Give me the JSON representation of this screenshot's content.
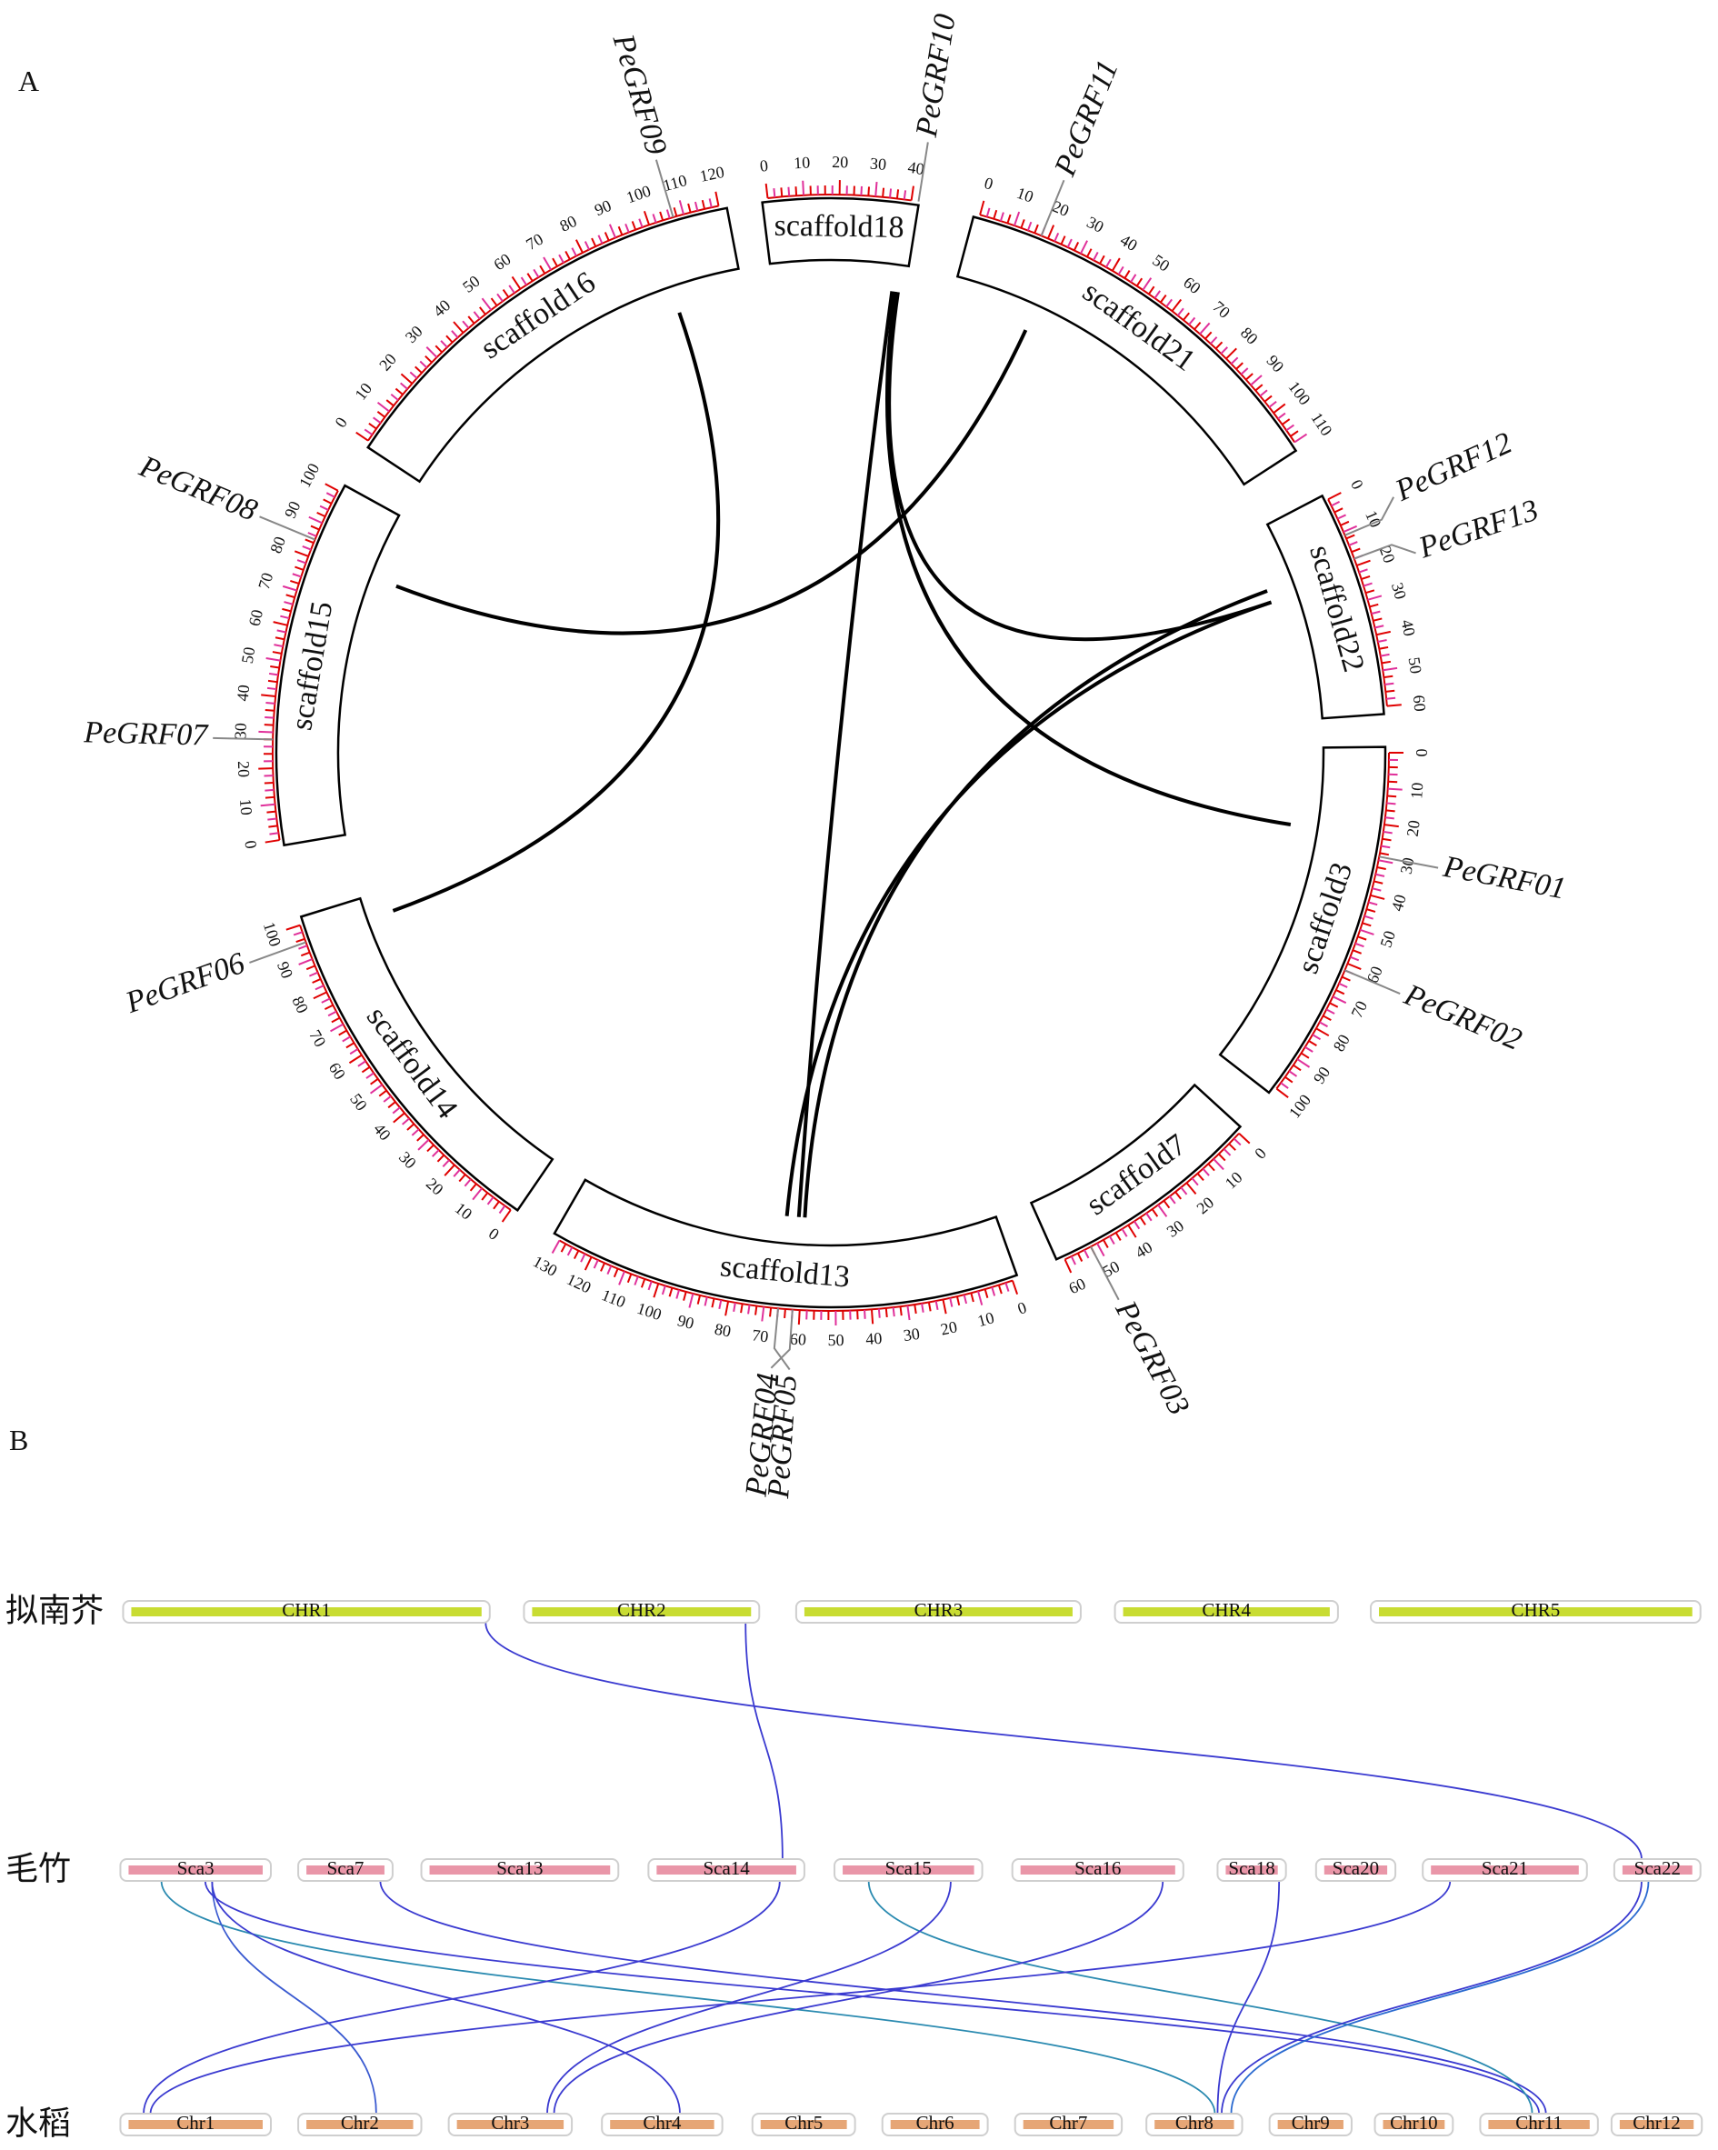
{
  "panel_a": {
    "label": "A",
    "scaffolds": [
      {
        "name": "scaffold18",
        "ticks": [
          0,
          10,
          20,
          30,
          40
        ]
      },
      {
        "name": "scaffold21",
        "ticks": [
          0,
          10,
          20,
          30,
          40,
          50,
          60,
          70,
          80,
          90,
          100,
          110
        ]
      },
      {
        "name": "scaffold22",
        "ticks": [
          0,
          10,
          20,
          30,
          40,
          50,
          60
        ]
      },
      {
        "name": "scaffold3",
        "ticks": [
          0,
          10,
          20,
          30,
          40,
          50,
          60,
          70,
          80,
          90,
          100
        ]
      },
      {
        "name": "scaffold7",
        "ticks": [
          0,
          10,
          20,
          30,
          40,
          50,
          60
        ]
      },
      {
        "name": "scaffold13",
        "ticks": [
          0,
          10,
          20,
          30,
          40,
          50,
          60,
          70,
          80,
          90,
          100,
          110,
          120,
          130
        ]
      },
      {
        "name": "scaffold14",
        "ticks": [
          0,
          10,
          20,
          30,
          40,
          50,
          60,
          70,
          80,
          90,
          100
        ]
      },
      {
        "name": "scaffold15",
        "ticks": [
          0,
          10,
          20,
          30,
          40,
          50,
          60,
          70,
          80,
          90,
          100
        ]
      },
      {
        "name": "scaffold16",
        "ticks": [
          0,
          10,
          20,
          30,
          40,
          50,
          60,
          70,
          80,
          90,
          100,
          110,
          120
        ]
      }
    ],
    "genes": [
      {
        "label": "PeGRF01"
      },
      {
        "label": "PeGRF02"
      },
      {
        "label": "PeGRF03"
      },
      {
        "label": "PeGRF04"
      },
      {
        "label": "PeGRF05"
      },
      {
        "label": "PeGRF06"
      },
      {
        "label": "PeGRF07"
      },
      {
        "label": "PeGRF08"
      },
      {
        "label": "PeGRF09"
      },
      {
        "label": "PeGRF10"
      },
      {
        "label": "PeGRF11"
      },
      {
        "label": "PeGRF12"
      },
      {
        "label": "PeGRF13"
      }
    ]
  },
  "panel_b": {
    "label": "B",
    "rows": [
      {
        "label": "拟南芥",
        "chromosomes": [
          "CHR1",
          "CHR2",
          "CHR3",
          "CHR4",
          "CHR5"
        ]
      },
      {
        "label": "毛竹",
        "chromosomes": [
          "Sca3",
          "Sca7",
          "Sca13",
          "Sca14",
          "Sca15",
          "Sca16",
          "Sca18",
          "Sca20",
          "Sca21",
          "Sca22"
        ]
      },
      {
        "label": "水稻",
        "chromosomes": [
          "Chr1",
          "Chr2",
          "Chr3",
          "Chr4",
          "Chr5",
          "Chr6",
          "Chr7",
          "Chr8",
          "Chr9",
          "Chr10",
          "Chr11",
          "Chr12"
        ]
      }
    ]
  }
}
